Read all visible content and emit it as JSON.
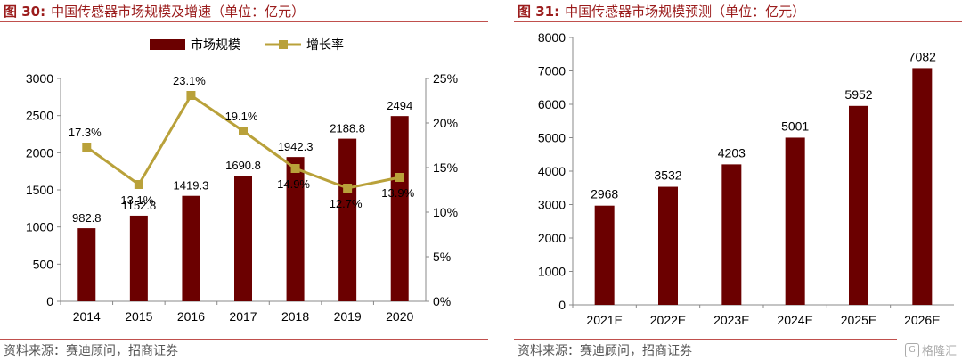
{
  "left": {
    "fig_no": "图 30:",
    "title": "中国传感器市场规模及增速（单位：亿元）",
    "source": "资料来源：赛迪顾问，招商证券"
  },
  "right": {
    "fig_no": "图 31:",
    "title": "中国传感器市场规模预测（单位：亿元）",
    "source": "资料来源：赛迪顾问，招商证券"
  },
  "watermark": "格隆汇",
  "watermark_icon": "G",
  "colors": {
    "bar": "#6b0000",
    "line": "#b9a13a",
    "title": "#9b1c1c"
  },
  "chart_data": [
    {
      "type": "bar+line",
      "categories": [
        "2014",
        "2015",
        "2016",
        "2017",
        "2018",
        "2019",
        "2020"
      ],
      "series": [
        {
          "name": "市场规模",
          "type": "bar",
          "axis": "left",
          "values": [
            982.8,
            1152.8,
            1419.3,
            1690.8,
            1942.3,
            2188.8,
            2494
          ],
          "labels": [
            "982.8",
            "1152.8",
            "1419.3",
            "1690.8",
            "1942.3",
            "2188.8",
            "2494"
          ]
        },
        {
          "name": "增长率",
          "type": "line",
          "axis": "right",
          "values": [
            17.3,
            13.1,
            23.1,
            19.1,
            14.9,
            12.7,
            13.9
          ],
          "labels": [
            "17.3%",
            "13.1%",
            "23.1%",
            "19.1%",
            "14.9%",
            "12.7%",
            "13.9%"
          ]
        }
      ],
      "ylim": [
        0,
        3000
      ],
      "yticks": [
        "0",
        "500",
        "1000",
        "1500",
        "2000",
        "2500",
        "3000"
      ],
      "y2lim": [
        0,
        25
      ],
      "y2ticks": [
        "0%",
        "5%",
        "10%",
        "15%",
        "20%",
        "25%"
      ],
      "legend": "top",
      "grid": false
    },
    {
      "type": "bar",
      "categories": [
        "2021E",
        "2022E",
        "2023E",
        "2024E",
        "2025E",
        "2026E"
      ],
      "values": [
        2968,
        3532,
        4203,
        5001,
        5952,
        7082
      ],
      "labels": [
        "2968",
        "3532",
        "4203",
        "5001",
        "5952",
        "7082"
      ],
      "ylim": [
        0,
        8000
      ],
      "yticks": [
        "0",
        "1000",
        "2000",
        "3000",
        "4000",
        "5000",
        "6000",
        "7000",
        "8000"
      ],
      "grid": false
    }
  ]
}
